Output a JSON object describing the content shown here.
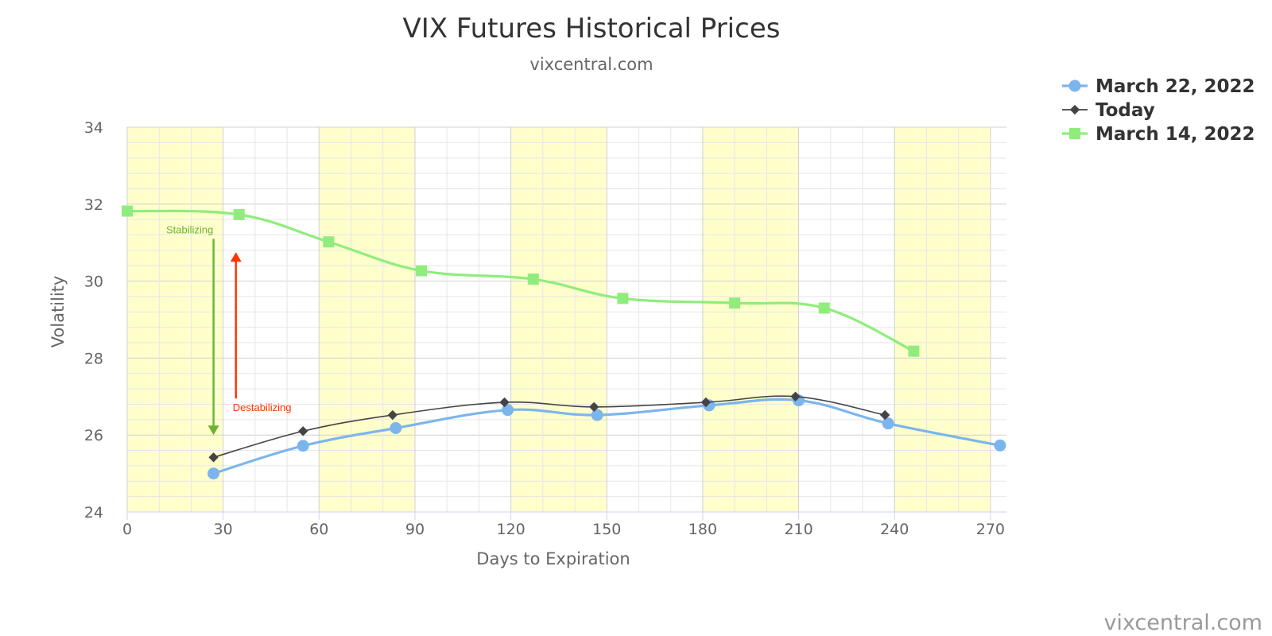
{
  "chart_data": {
    "type": "line",
    "title": "VIX Futures Historical Prices",
    "subtitle": "vixcentral.com",
    "credit": "vixcentral.com",
    "xlabel": "Days to Expiration",
    "ylabel": "Volatility",
    "xlim": [
      0,
      275
    ],
    "ylim": [
      24,
      34
    ],
    "xticks": [
      0,
      30,
      60,
      90,
      120,
      150,
      180,
      210,
      240,
      270
    ],
    "yticks": [
      24,
      26,
      28,
      30,
      32,
      34
    ],
    "grid": true,
    "band_color": "#ffffcc",
    "bands": [
      [
        0,
        30
      ],
      [
        60,
        90
      ],
      [
        120,
        150
      ],
      [
        180,
        210
      ],
      [
        240,
        270
      ]
    ],
    "legend_position": "top-right",
    "series": [
      {
        "name": "March 22, 2022",
        "color": "#7cb5ec",
        "marker": "circle",
        "x": [
          27,
          55,
          84,
          119,
          147,
          182,
          210,
          238,
          273
        ],
        "y": [
          25.0,
          25.72,
          26.18,
          26.65,
          26.52,
          26.77,
          26.9,
          26.3,
          25.73
        ]
      },
      {
        "name": "Today",
        "color": "#434348",
        "marker": "diamond",
        "x": [
          27,
          55,
          83,
          118,
          146,
          181,
          209,
          237
        ],
        "y": [
          25.42,
          26.1,
          26.52,
          26.85,
          26.73,
          26.85,
          27.0,
          26.52
        ]
      },
      {
        "name": "March 14, 2022",
        "color": "#90ed7d",
        "marker": "square",
        "x": [
          0,
          35,
          63,
          92,
          127,
          155,
          190,
          218,
          246
        ],
        "y": [
          31.82,
          31.73,
          31.02,
          30.27,
          30.05,
          29.55,
          29.43,
          29.3,
          28.18
        ]
      }
    ],
    "annotations": [
      {
        "text": "Stabilizing",
        "color": "#6bb333",
        "x": 27,
        "y_from": 31.1,
        "y_to": 26.0
      },
      {
        "text": "Destabilizing",
        "color": "#ff3300",
        "x": 34,
        "y_from": 26.95,
        "y_to": 30.75
      }
    ]
  }
}
